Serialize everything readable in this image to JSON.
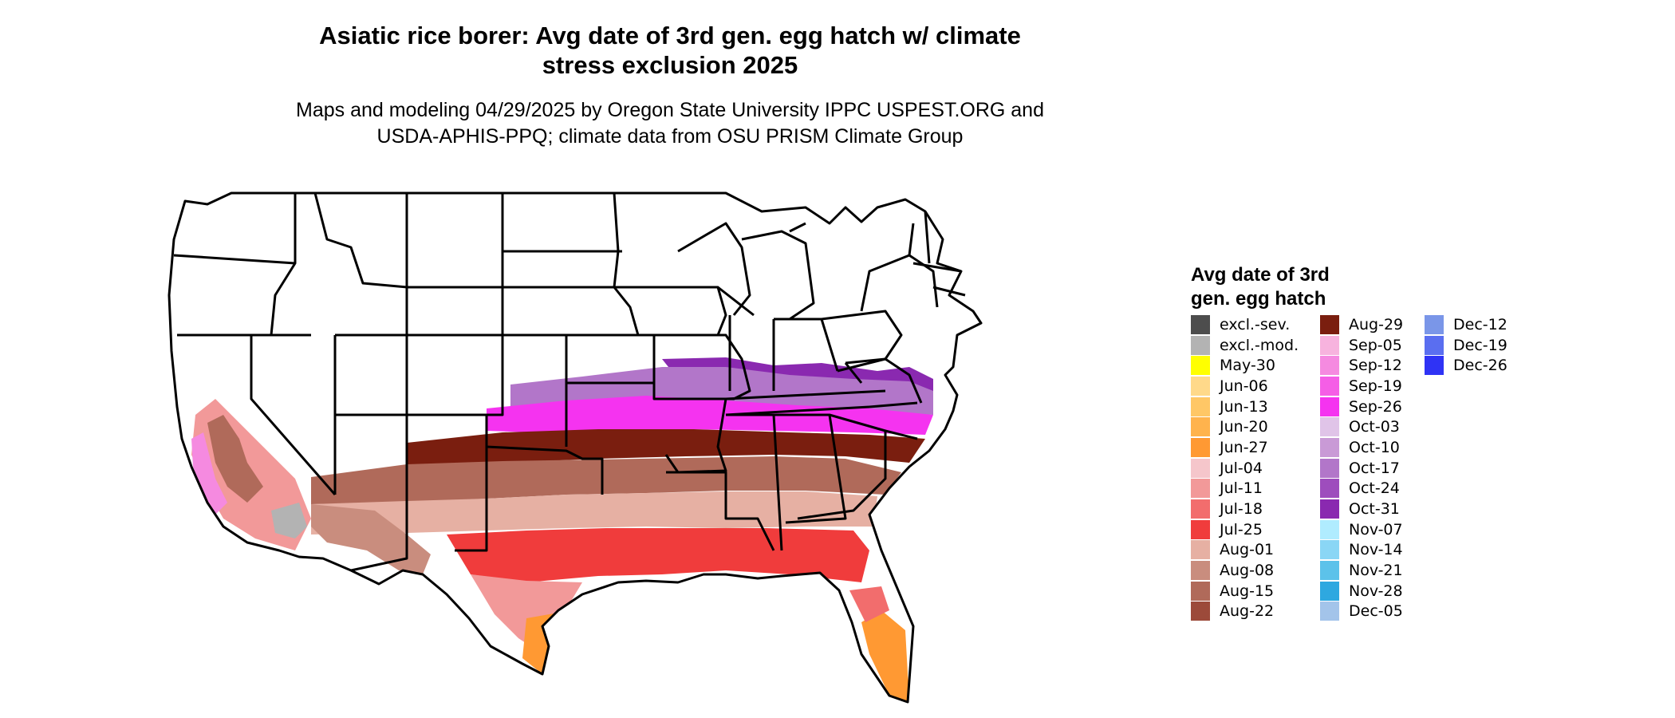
{
  "header": {
    "title_line1": "Asiatic rice borer: Avg date of 3rd gen. egg hatch w/ climate",
    "title_line2": "stress exclusion 2025",
    "subtitle_line1": "Maps and modeling 04/29/2025 by Oregon State University IPPC USPEST.ORG and",
    "subtitle_line2": "USDA-APHIS-PPQ; climate data from OSU PRISM Climate Group"
  },
  "legend": {
    "title_line1": "Avg date of 3rd",
    "title_line2": "gen. egg hatch",
    "columns": [
      [
        {
          "label": "excl.-sev.",
          "color": "#4d4d4d"
        },
        {
          "label": "excl.-mod.",
          "color": "#b3b3b3"
        },
        {
          "label": "May-30",
          "color": "#ffff00"
        },
        {
          "label": "Jun-06",
          "color": "#ffd98a"
        },
        {
          "label": "Jun-13",
          "color": "#ffc766"
        },
        {
          "label": "Jun-20",
          "color": "#ffb34d"
        },
        {
          "label": "Jun-27",
          "color": "#ff9933"
        },
        {
          "label": "Jul-04",
          "color": "#f5c6cb"
        },
        {
          "label": "Jul-11",
          "color": "#f29999"
        },
        {
          "label": "Jul-18",
          "color": "#f26d6d"
        },
        {
          "label": "Jul-25",
          "color": "#f03c3c"
        },
        {
          "label": "Aug-01",
          "color": "#e6b0a3"
        },
        {
          "label": "Aug-08",
          "color": "#c98d7e"
        },
        {
          "label": "Aug-15",
          "color": "#b06a5a"
        },
        {
          "label": "Aug-22",
          "color": "#9c4a3a"
        }
      ],
      [
        {
          "label": "Aug-29",
          "color": "#7a1e0f"
        },
        {
          "label": "Sep-05",
          "color": "#f7b3de"
        },
        {
          "label": "Sep-12",
          "color": "#f58ae0"
        },
        {
          "label": "Sep-19",
          "color": "#f55ee6"
        },
        {
          "label": "Sep-26",
          "color": "#f533f0"
        },
        {
          "label": "Oct-03",
          "color": "#e0c4e8"
        },
        {
          "label": "Oct-10",
          "color": "#c99ad6"
        },
        {
          "label": "Oct-17",
          "color": "#b276c9"
        },
        {
          "label": "Oct-24",
          "color": "#9e4dbd"
        },
        {
          "label": "Oct-31",
          "color": "#8a29b0"
        },
        {
          "label": "Nov-07",
          "color": "#b0ecff"
        },
        {
          "label": "Nov-14",
          "color": "#8ad6f5"
        },
        {
          "label": "Nov-21",
          "color": "#5cc2ea"
        },
        {
          "label": "Nov-28",
          "color": "#2ea8e0"
        },
        {
          "label": "Dec-05",
          "color": "#a3c4ea"
        }
      ],
      [
        {
          "label": "Dec-12",
          "color": "#7a96e8"
        },
        {
          "label": "Dec-19",
          "color": "#5a6ef0"
        },
        {
          "label": "Dec-26",
          "color": "#2f33f5"
        }
      ]
    ]
  }
}
